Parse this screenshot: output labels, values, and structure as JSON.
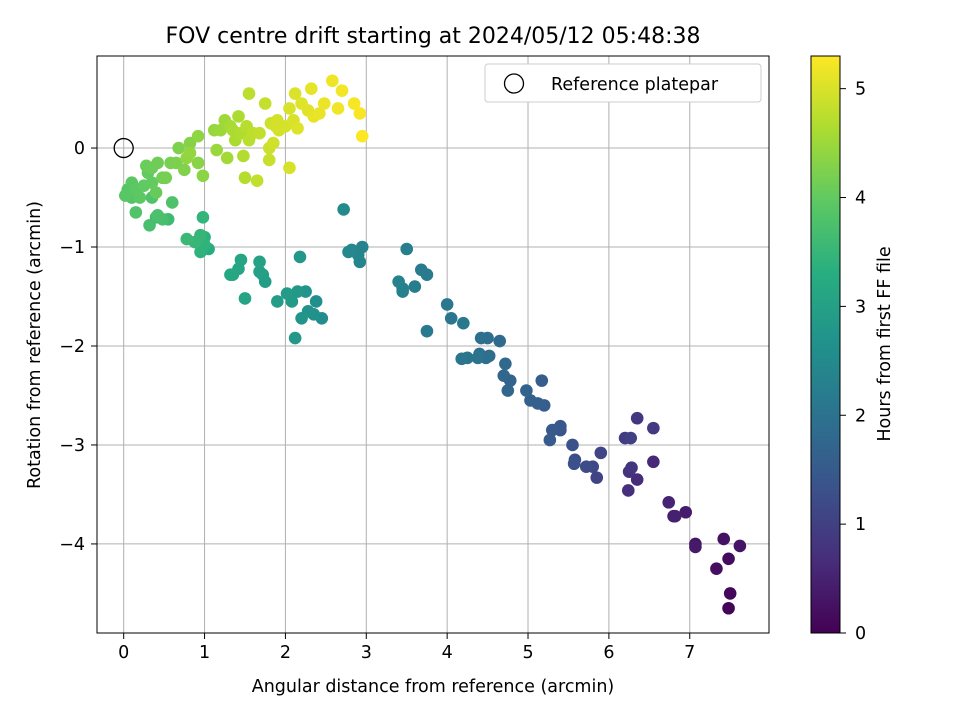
{
  "chart_data": {
    "type": "scatter",
    "title": "FOV centre drift starting at 2024/05/12 05:48:38",
    "xlabel": "Angular distance from reference (arcmin)",
    "ylabel": "Rotation from reference (arcmin)",
    "xlim": [
      -0.33,
      7.98
    ],
    "ylim": [
      -4.9,
      0.93
    ],
    "x_ticks": [
      0,
      1,
      2,
      3,
      4,
      5,
      6,
      7
    ],
    "y_ticks": [
      -4,
      -3,
      -2,
      -1,
      0
    ],
    "grid": true,
    "legend": {
      "position": "top-right",
      "entries": [
        "Reference platepar"
      ]
    },
    "reference_point": {
      "x": 0,
      "y": 0,
      "label": "Reference platepar"
    },
    "colorbar": {
      "label": "Hours from first FF file",
      "range": [
        0,
        5.3
      ],
      "ticks": [
        0,
        1,
        2,
        3,
        4,
        5
      ],
      "colormap": "viridis"
    },
    "points": [
      [
        7.48,
        -4.65,
        0.05
      ],
      [
        7.5,
        -4.5,
        0.1
      ],
      [
        7.48,
        -4.15,
        0.15
      ],
      [
        7.33,
        -4.25,
        0.2
      ],
      [
        7.42,
        -3.95,
        0.25
      ],
      [
        7.62,
        -4.02,
        0.28
      ],
      [
        7.07,
        -4.0,
        0.32
      ],
      [
        7.07,
        -4.03,
        0.36
      ],
      [
        6.95,
        -3.68,
        0.4
      ],
      [
        6.8,
        -3.72,
        0.44
      ],
      [
        6.82,
        -3.72,
        0.48
      ],
      [
        6.74,
        -3.58,
        0.52
      ],
      [
        6.55,
        -3.17,
        0.6
      ],
      [
        6.35,
        -3.35,
        0.65
      ],
      [
        6.24,
        -3.46,
        0.7
      ],
      [
        6.25,
        -3.27,
        0.75
      ],
      [
        6.28,
        -3.23,
        0.8
      ],
      [
        6.35,
        -2.73,
        0.85
      ],
      [
        6.55,
        -2.83,
        0.9
      ],
      [
        6.2,
        -2.93,
        0.95
      ],
      [
        6.27,
        -2.93,
        1.0
      ],
      [
        5.85,
        -3.33,
        1.05
      ],
      [
        5.9,
        -3.08,
        1.1
      ],
      [
        5.8,
        -3.22,
        1.15
      ],
      [
        5.72,
        -3.22,
        1.2
      ],
      [
        5.58,
        -3.15,
        1.25
      ],
      [
        5.57,
        -3.19,
        1.3
      ],
      [
        5.55,
        -3.0,
        1.35
      ],
      [
        5.4,
        -2.85,
        1.4
      ],
      [
        5.4,
        -2.81,
        1.45
      ],
      [
        5.3,
        -2.85,
        1.5
      ],
      [
        5.27,
        -2.95,
        1.52
      ],
      [
        5.2,
        -2.6,
        1.55
      ],
      [
        5.17,
        -2.35,
        1.58
      ],
      [
        5.12,
        -2.58,
        1.6
      ],
      [
        5.03,
        -2.55,
        1.63
      ],
      [
        4.98,
        -2.45,
        1.66
      ],
      [
        4.78,
        -2.35,
        1.7
      ],
      [
        4.75,
        -2.45,
        1.73
      ],
      [
        4.7,
        -2.3,
        1.76
      ],
      [
        4.72,
        -2.18,
        1.8
      ],
      [
        4.65,
        -1.95,
        1.83
      ],
      [
        4.52,
        -2.1,
        1.86
      ],
      [
        4.5,
        -1.92,
        1.9
      ],
      [
        4.48,
        -2.12,
        1.92
      ],
      [
        4.42,
        -1.92,
        1.95
      ],
      [
        4.4,
        -2.08,
        1.98
      ],
      [
        4.38,
        -2.12,
        2.0
      ],
      [
        4.25,
        -2.12,
        2.02
      ],
      [
        4.18,
        -2.13,
        2.05
      ],
      [
        4.05,
        -1.72,
        2.07
      ],
      [
        4.0,
        -1.58,
        2.1
      ],
      [
        4.2,
        -1.77,
        2.12
      ],
      [
        3.75,
        -1.85,
        2.15
      ],
      [
        3.75,
        -1.28,
        2.18
      ],
      [
        3.68,
        -1.23,
        2.2
      ],
      [
        3.6,
        -1.4,
        2.23
      ],
      [
        3.5,
        -1.02,
        2.26
      ],
      [
        3.45,
        -1.45,
        2.28
      ],
      [
        3.45,
        -1.42,
        2.3
      ],
      [
        3.4,
        -1.35,
        2.33
      ],
      [
        2.95,
        -1.0,
        2.36
      ],
      [
        2.92,
        -1.15,
        2.38
      ],
      [
        2.9,
        -1.08,
        2.4
      ],
      [
        2.82,
        -1.03,
        2.43
      ],
      [
        2.78,
        -1.05,
        2.46
      ],
      [
        2.72,
        -0.62,
        2.5
      ],
      [
        2.45,
        -1.72,
        2.55
      ],
      [
        2.38,
        -1.55,
        2.6
      ],
      [
        2.35,
        -1.68,
        2.65
      ],
      [
        2.28,
        -1.65,
        2.7
      ],
      [
        2.25,
        -1.45,
        2.72
      ],
      [
        2.2,
        -1.72,
        2.75
      ],
      [
        2.18,
        -1.1,
        2.78
      ],
      [
        2.15,
        -1.45,
        2.8
      ],
      [
        2.12,
        -1.92,
        2.82
      ],
      [
        2.08,
        -1.55,
        2.85
      ],
      [
        2.02,
        -1.47,
        2.88
      ],
      [
        1.9,
        -1.55,
        2.9
      ],
      [
        1.75,
        -1.35,
        2.93
      ],
      [
        1.72,
        -1.28,
        2.96
      ],
      [
        1.68,
        -1.25,
        3.0
      ],
      [
        1.68,
        -1.15,
        3.02
      ],
      [
        1.5,
        -1.52,
        3.05
      ],
      [
        1.45,
        -1.13,
        3.08
      ],
      [
        1.42,
        -1.22,
        3.1
      ],
      [
        1.35,
        -1.28,
        3.13
      ],
      [
        1.32,
        -1.28,
        3.16
      ],
      [
        1.05,
        -1.02,
        3.3
      ],
      [
        1.0,
        -0.9,
        3.35
      ],
      [
        0.95,
        -1.05,
        3.4
      ],
      [
        1.0,
        -0.98,
        3.42
      ],
      [
        0.98,
        -0.7,
        3.45
      ],
      [
        0.95,
        -0.88,
        3.48
      ],
      [
        0.88,
        -0.95,
        3.5
      ],
      [
        0.78,
        -0.92,
        3.55
      ],
      [
        0.55,
        -0.72,
        3.6
      ],
      [
        0.4,
        -0.7,
        3.65
      ],
      [
        0.32,
        -0.78,
        3.7
      ],
      [
        0.48,
        -0.72,
        3.72
      ],
      [
        0.42,
        -0.68,
        3.75
      ],
      [
        0.6,
        -0.55,
        3.78
      ],
      [
        0.35,
        -0.5,
        3.8
      ],
      [
        0.15,
        -0.65,
        3.83
      ],
      [
        0.1,
        -0.5,
        3.86
      ],
      [
        0.05,
        -0.42,
        3.88
      ],
      [
        0.02,
        -0.48,
        3.9
      ],
      [
        0.1,
        -0.35,
        3.92
      ],
      [
        0.15,
        -0.42,
        3.94
      ],
      [
        0.2,
        -0.5,
        3.96
      ],
      [
        0.25,
        -0.38,
        3.98
      ],
      [
        0.3,
        -0.25,
        4.0
      ],
      [
        0.35,
        -0.35,
        4.02
      ],
      [
        0.4,
        -0.45,
        4.05
      ],
      [
        0.28,
        -0.18,
        4.07
      ],
      [
        0.35,
        -0.2,
        4.1
      ],
      [
        0.42,
        -0.15,
        4.12
      ],
      [
        0.48,
        -0.3,
        4.15
      ],
      [
        0.52,
        -0.3,
        4.17
      ],
      [
        0.58,
        -0.15,
        4.2
      ],
      [
        0.65,
        -0.15,
        4.22
      ],
      [
        0.68,
        0.0,
        4.25
      ],
      [
        0.75,
        -0.22,
        4.27
      ],
      [
        0.82,
        0.05,
        4.3
      ],
      [
        0.92,
        -0.15,
        4.33
      ],
      [
        0.98,
        -0.28,
        4.35
      ],
      [
        0.92,
        0.12,
        4.38
      ],
      [
        0.78,
        -0.1,
        4.4
      ],
      [
        0.82,
        -0.05,
        4.42
      ],
      [
        1.12,
        0.18,
        4.45
      ],
      [
        1.15,
        -0.02,
        4.48
      ],
      [
        1.2,
        0.18,
        4.5
      ],
      [
        1.25,
        0.28,
        4.52
      ],
      [
        1.28,
        -0.1,
        4.55
      ],
      [
        1.32,
        0.22,
        4.58
      ],
      [
        1.35,
        0.18,
        4.6
      ],
      [
        1.38,
        0.08,
        4.62
      ],
      [
        1.42,
        0.32,
        4.64
      ],
      [
        1.45,
        0.15,
        4.66
      ],
      [
        1.48,
        -0.08,
        4.68
      ],
      [
        1.5,
        -0.3,
        4.7
      ],
      [
        1.52,
        0.22,
        4.72
      ],
      [
        1.55,
        0.08,
        4.74
      ],
      [
        1.55,
        0.55,
        4.76
      ],
      [
        1.6,
        0.15,
        4.78
      ],
      [
        1.65,
        -0.33,
        4.8
      ],
      [
        1.68,
        0.15,
        4.82
      ],
      [
        1.75,
        0.45,
        4.84
      ],
      [
        1.8,
        -0.12,
        4.86
      ],
      [
        1.8,
        0.0,
        4.88
      ],
      [
        1.82,
        0.25,
        4.9
      ],
      [
        1.85,
        0.05,
        4.92
      ],
      [
        1.88,
        0.22,
        4.94
      ],
      [
        1.9,
        0.28,
        4.95
      ],
      [
        1.92,
        0.18,
        4.96
      ],
      [
        2.0,
        0.22,
        4.97
      ],
      [
        2.05,
        -0.2,
        4.98
      ],
      [
        2.05,
        0.4,
        4.99
      ],
      [
        2.1,
        0.28,
        5.0
      ],
      [
        2.12,
        0.55,
        5.02
      ],
      [
        2.15,
        0.2,
        5.03
      ],
      [
        2.2,
        0.45,
        5.05
      ],
      [
        2.28,
        0.38,
        5.07
      ],
      [
        2.32,
        0.6,
        5.1
      ],
      [
        2.35,
        0.32,
        5.12
      ],
      [
        2.42,
        0.35,
        5.14
      ],
      [
        2.48,
        0.45,
        5.16
      ],
      [
        2.58,
        0.68,
        5.18
      ],
      [
        2.65,
        0.4,
        5.2
      ],
      [
        2.7,
        0.58,
        5.22
      ],
      [
        2.85,
        0.45,
        5.24
      ],
      [
        2.92,
        0.35,
        5.26
      ],
      [
        2.95,
        0.12,
        5.28
      ]
    ]
  }
}
